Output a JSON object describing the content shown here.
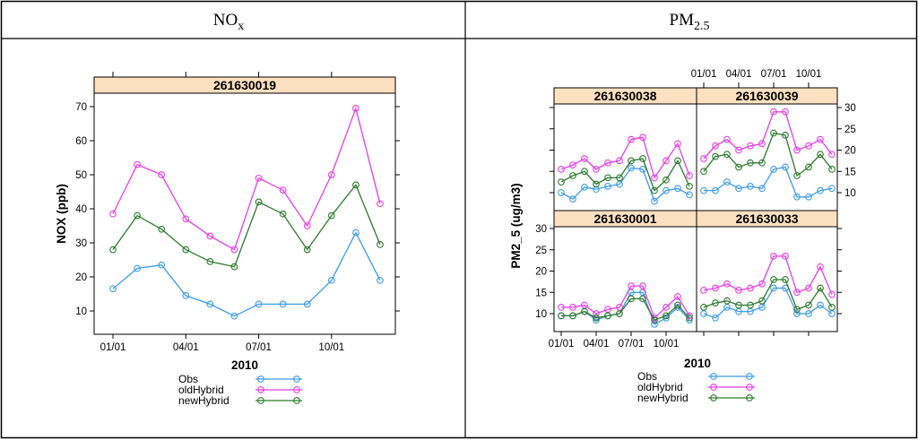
{
  "table": {
    "col1_header": {
      "base": "NO",
      "sub": "x"
    },
    "col2_header": {
      "base": "PM",
      "sub": "2.5"
    }
  },
  "colors": {
    "obs": "#3c9be8",
    "oldHybrid": "#e83ce8",
    "newHybrid": "#2b7a2b",
    "strip": "#fde0c0"
  },
  "chart_data": [
    {
      "type": "line",
      "panel": "261630019",
      "title": "261630019",
      "xlabel": "2010",
      "ylabel": "NOX (ppb)",
      "x_ticks": [
        "01/01",
        "04/01",
        "07/01",
        "10/01"
      ],
      "y_ticks": [
        10,
        20,
        30,
        40,
        50,
        60,
        70
      ],
      "ylim": [
        4,
        75
      ],
      "x": [
        1,
        2,
        3,
        4,
        5,
        6,
        7,
        8,
        9,
        10,
        11,
        12
      ],
      "series": [
        {
          "name": "Obs",
          "values": [
            16.5,
            22.5,
            23.5,
            14.5,
            12,
            8.5,
            12,
            12,
            12,
            19,
            33,
            19
          ]
        },
        {
          "name": "oldHybrid",
          "values": [
            38.5,
            53,
            50,
            37,
            32,
            28,
            49,
            45.5,
            35,
            50,
            69.5,
            41.5
          ]
        },
        {
          "name": "newHybrid",
          "values": [
            28,
            38,
            34,
            28,
            24.5,
            23,
            42,
            38.5,
            28,
            38,
            47,
            29.5
          ]
        }
      ],
      "legend": [
        "Obs",
        "oldHybrid",
        "newHybrid"
      ]
    },
    {
      "type": "line",
      "panels": [
        {
          "name": "261630038",
          "series": [
            {
              "name": "Obs",
              "values": [
                10,
                8.5,
                11.3,
                10.8,
                11.5,
                12,
                15.8,
                15.5,
                8,
                10.5,
                11,
                9.5
              ]
            },
            {
              "name": "oldHybrid",
              "values": [
                15.5,
                16.5,
                18,
                15.5,
                17,
                17.5,
                22.5,
                23,
                13.5,
                17.5,
                21.5,
                14
              ]
            },
            {
              "name": "newHybrid",
              "values": [
                12.5,
                14,
                15,
                12,
                13.5,
                13.5,
                17.5,
                18,
                10.5,
                13,
                17.5,
                11.5
              ]
            }
          ]
        },
        {
          "name": "261630039",
          "series": [
            {
              "name": "Obs",
              "values": [
                10.5,
                10.5,
                12.5,
                11,
                11.5,
                11,
                15.5,
                16,
                9,
                9,
                10.5,
                11
              ]
            },
            {
              "name": "oldHybrid",
              "values": [
                18,
                21,
                22.5,
                20,
                21,
                21.5,
                29,
                29,
                20,
                21,
                22.5,
                19
              ]
            },
            {
              "name": "newHybrid",
              "values": [
                15,
                18.5,
                19,
                16,
                17,
                17,
                24,
                23.5,
                14,
                16,
                19,
                15.5
              ]
            }
          ]
        },
        {
          "name": "261630001",
          "series": [
            {
              "name": "Obs",
              "values": [
                9.5,
                9.5,
                10.5,
                8.5,
                9.5,
                10,
                15,
                15,
                7.5,
                9,
                11.5,
                8.5
              ]
            },
            {
              "name": "oldHybrid",
              "values": [
                11.5,
                11.5,
                12,
                10,
                11,
                11.5,
                16.5,
                16.5,
                9,
                11.5,
                14,
                9.5
              ]
            },
            {
              "name": "newHybrid",
              "values": [
                9.5,
                9.5,
                10.5,
                9,
                9.5,
                10,
                13.5,
                13.5,
                8.5,
                9.5,
                12,
                9
              ]
            }
          ]
        },
        {
          "name": "261630033",
          "series": [
            {
              "name": "Obs",
              "values": [
                10,
                9,
                11.5,
                10.5,
                10.5,
                11.5,
                16,
                16,
                10,
                10,
                12,
                10
              ]
            },
            {
              "name": "oldHybrid",
              "values": [
                15.5,
                16,
                17,
                15.5,
                16,
                17,
                23.5,
                23.5,
                15,
                16,
                21,
                14.5
              ]
            },
            {
              "name": "newHybrid",
              "values": [
                11.5,
                12.5,
                13,
                12,
                12,
                13,
                18,
                18,
                11,
                12,
                16,
                11.5
              ]
            }
          ]
        }
      ],
      "xlabel": "2010",
      "ylabel": "PM2_5 (ug/m3)",
      "x_ticks": [
        "01/01",
        "04/01",
        "07/01",
        "10/01"
      ],
      "y_ticks_left": [
        10,
        15,
        20,
        25,
        30
      ],
      "y_ticks_right": [
        10,
        15,
        20,
        25,
        30
      ],
      "ylim": [
        7,
        31
      ],
      "x": [
        1,
        2,
        3,
        4,
        5,
        6,
        7,
        8,
        9,
        10,
        11,
        12
      ],
      "legend": [
        "Obs",
        "oldHybrid",
        "newHybrid"
      ]
    }
  ]
}
